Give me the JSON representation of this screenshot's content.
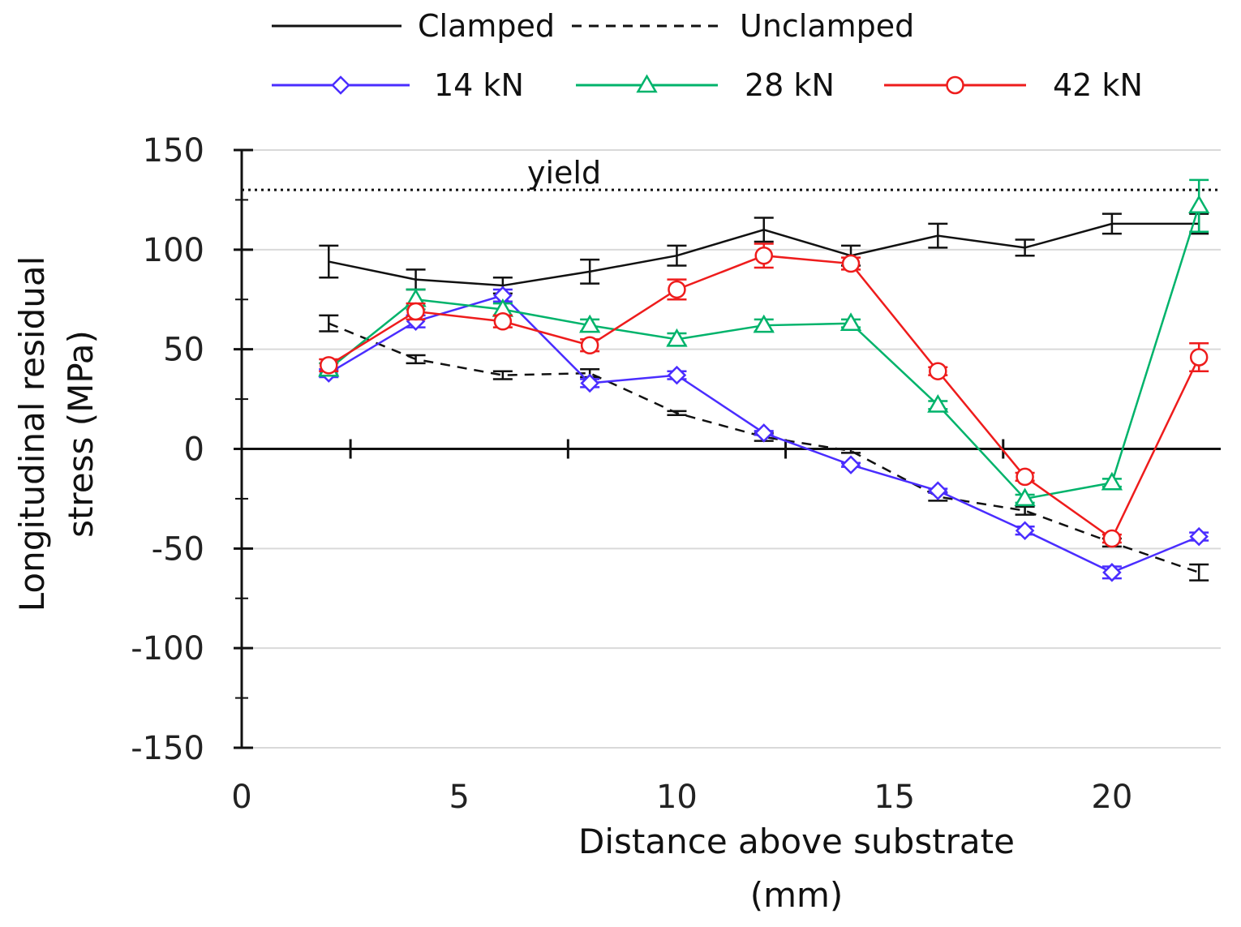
{
  "chart_data": {
    "type": "line",
    "title": "",
    "xlabel_line1": "Distance above substrate",
    "xlabel_line2": "(mm)",
    "ylabel_line1": "Longitudinal residual",
    "ylabel_line2": "stress (MPa)",
    "xlim": [
      0,
      22.5
    ],
    "ylim": [
      -150,
      150
    ],
    "x_ticks": [
      0,
      5,
      10,
      15,
      20
    ],
    "y_ticks": [
      150,
      100,
      50,
      0,
      -50,
      -100,
      -150
    ],
    "y_tick_labels": [
      "150",
      "100",
      "50",
      "0",
      "-50",
      "-100",
      "-150"
    ],
    "x_tick_labels": [
      "0",
      "5",
      "10",
      "15",
      "20"
    ],
    "grid": "horizontal",
    "legend_position": "top",
    "annotations": [
      {
        "text": "yield",
        "y": 130
      }
    ],
    "series": [
      {
        "name": "Clamped",
        "color": "#111111",
        "dash": "solid",
        "marker": "none",
        "x": [
          2,
          4,
          6,
          8,
          10,
          12,
          14,
          16,
          18,
          20,
          22
        ],
        "values": [
          94,
          85,
          82,
          89,
          97,
          110,
          97,
          107,
          101,
          113,
          113
        ],
        "errors": [
          8,
          5,
          4,
          6,
          5,
          6,
          5,
          6,
          4,
          5,
          5
        ]
      },
      {
        "name": "Unclamped",
        "color": "#111111",
        "dash": "dashed",
        "marker": "none",
        "x": [
          2,
          4,
          6,
          8,
          10,
          12,
          14,
          16,
          18,
          20,
          22
        ],
        "values": [
          63,
          45,
          37,
          38,
          18,
          6,
          -1,
          -24,
          -31,
          -47,
          -62
        ],
        "errors": [
          4,
          2,
          2,
          2,
          1,
          2,
          1,
          2,
          2,
          2,
          4
        ]
      },
      {
        "name": "14 kN",
        "color": "#4a2dff",
        "dash": "solid",
        "marker": "diamond",
        "x": [
          2,
          4,
          6,
          8,
          10,
          12,
          14,
          16,
          18,
          20,
          22
        ],
        "values": [
          38,
          64,
          77,
          33,
          37,
          8,
          -8,
          -21,
          -41,
          -62,
          -44
        ],
        "errors": [
          2,
          3,
          3,
          2,
          2,
          1,
          1,
          1,
          2,
          3,
          2
        ]
      },
      {
        "name": "28 kN",
        "color": "#00b36b",
        "dash": "solid",
        "marker": "triangle",
        "x": [
          2,
          4,
          6,
          8,
          10,
          12,
          14,
          16,
          18,
          20,
          22
        ],
        "values": [
          40,
          75,
          70,
          62,
          55,
          62,
          63,
          22,
          -25,
          -17,
          122
        ],
        "errors": [
          3,
          5,
          3,
          3,
          3,
          3,
          2,
          2,
          2,
          2,
          13
        ]
      },
      {
        "name": "42 kN",
        "color": "#ee1c1c",
        "dash": "solid",
        "marker": "circle",
        "x": [
          2,
          4,
          6,
          8,
          10,
          12,
          14,
          16,
          18,
          20,
          22
        ],
        "values": [
          42,
          69,
          64,
          52,
          80,
          97,
          93,
          39,
          -14,
          -45,
          46
        ],
        "errors": [
          3,
          4,
          3,
          3,
          5,
          6,
          3,
          2,
          2,
          2,
          7
        ]
      }
    ]
  }
}
